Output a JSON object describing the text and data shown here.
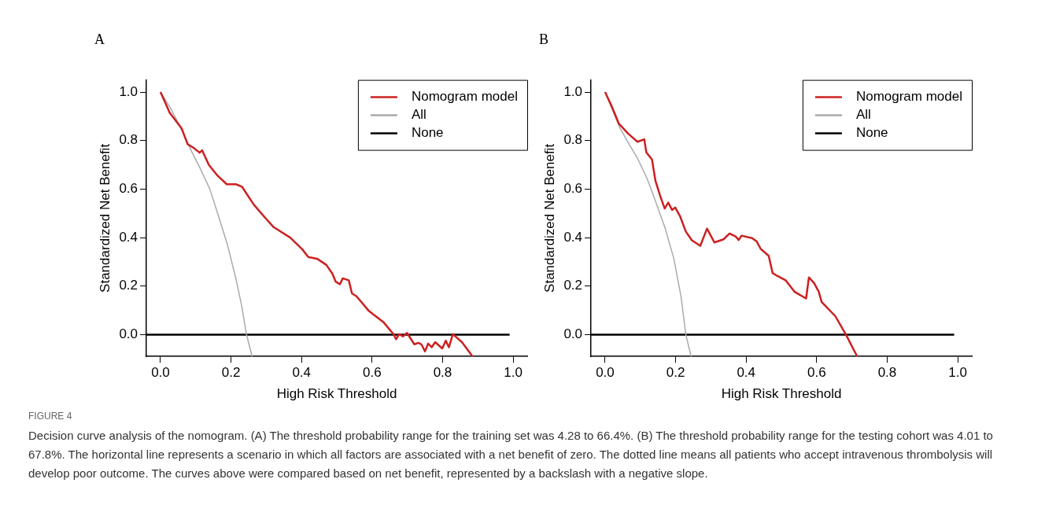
{
  "chart_data": [
    {
      "type": "line",
      "title": "A",
      "xlabel": "High Risk Threshold",
      "ylabel": "Standardized Net Benefit",
      "xlim": [
        -0.04,
        1.04
      ],
      "ylim": [
        -0.09,
        1.05
      ],
      "xticks": [
        {
          "value": 0,
          "label": "0.0"
        },
        {
          "value": 0.2,
          "label": "0.2"
        },
        {
          "value": 0.4,
          "label": "0.4"
        },
        {
          "value": 0.6,
          "label": "0.6"
        },
        {
          "value": 0.8,
          "label": "0.8"
        },
        {
          "value": 1,
          "label": "1.0"
        }
      ],
      "yticks": [
        {
          "value": 0,
          "label": "0.0"
        },
        {
          "value": 0.2,
          "label": "0.2"
        },
        {
          "value": 0.4,
          "label": "0.4"
        },
        {
          "value": 0.6,
          "label": "0.6"
        },
        {
          "value": 0.8,
          "label": "0.8"
        },
        {
          "value": 1,
          "label": "1.0"
        }
      ],
      "grid": false,
      "legend": "top right",
      "marker": "none",
      "line_style": "solid",
      "series": [
        {
          "name": "Nomogram model",
          "color": "#cc2020",
          "x": [
            0,
            0.026,
            0.06,
            0.077,
            0.094,
            0.111,
            0.118,
            0.137,
            0.162,
            0.188,
            0.214,
            0.231,
            0.265,
            0.299,
            0.321,
            0.368,
            0.402,
            0.419,
            0.444,
            0.47,
            0.487,
            0.497,
            0.509,
            0.517,
            0.534,
            0.543,
            0.556,
            0.59,
            0.632,
            0.662,
            0.668,
            0.677,
            0.688,
            0.699,
            0.72,
            0.731,
            0.74,
            0.75,
            0.759,
            0.769,
            0.779,
            0.799,
            0.809,
            0.818,
            0.829,
            0.855,
            0.885
          ],
          "values": [
            1.0,
            0.915,
            0.85,
            0.785,
            0.77,
            0.75,
            0.76,
            0.7,
            0.655,
            0.62,
            0.62,
            0.61,
            0.535,
            0.478,
            0.443,
            0.4,
            0.352,
            0.32,
            0.313,
            0.288,
            0.253,
            0.218,
            0.208,
            0.232,
            0.224,
            0.17,
            0.158,
            0.099,
            0.052,
            0.0,
            -0.019,
            0.002,
            -0.007,
            0.007,
            -0.04,
            -0.034,
            -0.04,
            -0.069,
            -0.037,
            -0.052,
            -0.031,
            -0.057,
            -0.025,
            -0.052,
            0.002,
            -0.031,
            -0.09
          ]
        },
        {
          "name": "All",
          "color": "#aaaaaa",
          "x": [
            0,
            0.03,
            0.06,
            0.09,
            0.111,
            0.14,
            0.162,
            0.19,
            0.214,
            0.23,
            0.244,
            0.26
          ],
          "values": [
            1.0,
            0.93,
            0.844,
            0.75,
            0.69,
            0.6,
            0.5,
            0.37,
            0.23,
            0.12,
            0.0,
            -0.09
          ]
        },
        {
          "name": "None",
          "color": "#000000",
          "x": [
            -0.04,
            0.99
          ],
          "values": [
            0,
            0
          ]
        }
      ]
    },
    {
      "type": "line",
      "title": "B",
      "xlabel": "High Risk Threshold",
      "ylabel": "Standardized Net Benefit",
      "xlim": [
        -0.04,
        1.04
      ],
      "ylim": [
        -0.09,
        1.05
      ],
      "xticks": [
        {
          "value": 0,
          "label": "0.0"
        },
        {
          "value": 0.2,
          "label": "0.2"
        },
        {
          "value": 0.4,
          "label": "0.4"
        },
        {
          "value": 0.6,
          "label": "0.6"
        },
        {
          "value": 0.8,
          "label": "0.8"
        },
        {
          "value": 1,
          "label": "1.0"
        }
      ],
      "yticks": [
        {
          "value": 0,
          "label": "0.0"
        },
        {
          "value": 0.2,
          "label": "0.2"
        },
        {
          "value": 0.4,
          "label": "0.4"
        },
        {
          "value": 0.6,
          "label": "0.6"
        },
        {
          "value": 0.8,
          "label": "0.8"
        },
        {
          "value": 1,
          "label": "1.0"
        }
      ],
      "grid": false,
      "legend": "top right",
      "marker": "none",
      "line_style": "solid",
      "series": [
        {
          "name": "Nomogram model",
          "color": "#cc2020",
          "x": [
            0,
            0.019,
            0.039,
            0.066,
            0.092,
            0.111,
            0.117,
            0.133,
            0.143,
            0.156,
            0.169,
            0.179,
            0.19,
            0.199,
            0.212,
            0.229,
            0.246,
            0.27,
            0.289,
            0.31,
            0.336,
            0.353,
            0.37,
            0.379,
            0.387,
            0.417,
            0.43,
            0.441,
            0.464,
            0.475,
            0.486,
            0.512,
            0.537,
            0.57,
            0.578,
            0.593,
            0.606,
            0.614,
            0.653,
            0.683,
            0.715
          ],
          "values": [
            1.0,
            0.941,
            0.87,
            0.828,
            0.795,
            0.805,
            0.751,
            0.722,
            0.633,
            0.573,
            0.52,
            0.544,
            0.514,
            0.524,
            0.49,
            0.425,
            0.389,
            0.366,
            0.437,
            0.38,
            0.393,
            0.417,
            0.405,
            0.39,
            0.408,
            0.398,
            0.384,
            0.354,
            0.325,
            0.254,
            0.244,
            0.224,
            0.177,
            0.149,
            0.236,
            0.212,
            0.177,
            0.135,
            0.076,
            0.0,
            -0.09
          ]
        },
        {
          "name": "All",
          "color": "#aaaaaa",
          "x": [
            0,
            0.04,
            0.07,
            0.092,
            0.12,
            0.143,
            0.17,
            0.195,
            0.215,
            0.229,
            0.244
          ],
          "values": [
            1.0,
            0.858,
            0.78,
            0.727,
            0.64,
            0.55,
            0.44,
            0.313,
            0.16,
            0.0,
            -0.09
          ]
        },
        {
          "name": "None",
          "color": "#000000",
          "x": [
            -0.04,
            0.99
          ],
          "values": [
            0,
            0
          ]
        }
      ]
    },
    {
      "type": "other",
      "title": "FIGURE 4",
      "annotations": [
        "Decision curve analysis of the nomogram. (A) The threshold probability range for the training set was 4.28 to 66.4%. (B) The threshold probability range for the testing cohort was 4.01 to 67.8%. The horizontal line represents a scenario in which all factors are associated with a net benefit of zero. The dotted line means all patients who accept intravenous thrombolysis will develop poor outcome. The curves above were compared based on net benefit, represented by a backslash with a negative slope."
      ]
    }
  ]
}
